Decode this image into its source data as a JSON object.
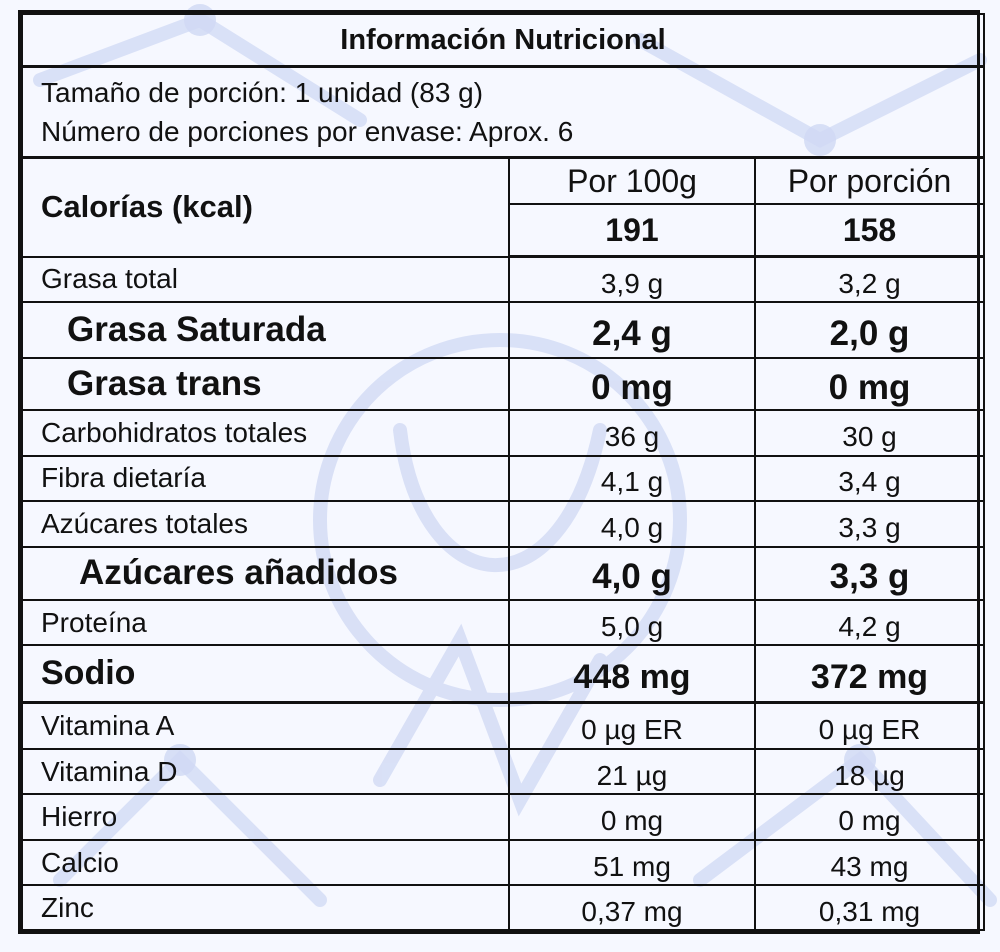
{
  "label": {
    "title": "Información Nutricional",
    "serving_size": "Tamaño de porción: 1 unidad (83 g)",
    "servings_per_container": "Número de porciones por envase: Aprox. 6",
    "calories_label": "Calorías (kcal)",
    "col_per100": "Por 100g",
    "col_perserving": "Por porción",
    "calories_per100": "191",
    "calories_perserving": "158",
    "rows": [
      {
        "name": "Grasa total",
        "per100": "3,9 g",
        "perserving": "3,2 g"
      },
      {
        "name": "Grasa Saturada",
        "per100": "2,4 g",
        "perserving": "2,0 g"
      },
      {
        "name": "Grasa trans",
        "per100": "0 mg",
        "perserving": "0 mg"
      },
      {
        "name": "Carbohidratos totales",
        "per100": "36 g",
        "perserving": "30 g"
      },
      {
        "name": "Fibra dietaría",
        "per100": "4,1 g",
        "perserving": "3,4 g"
      },
      {
        "name": "Azúcares totales",
        "per100": "4,0 g",
        "perserving": "3,3 g"
      },
      {
        "name": "Azúcares añadidos",
        "per100": "4,0 g",
        "perserving": "3,3 g"
      },
      {
        "name": "Proteína",
        "per100": "5,0 g",
        "perserving": "4,2 g"
      },
      {
        "name": "Sodio",
        "per100": "448 mg",
        "perserving": "372 mg"
      },
      {
        "name": "Vitamina A",
        "per100": "0 µg ER",
        "perserving": "0 µg ER"
      },
      {
        "name": "Vitamina D",
        "per100": "21 µg",
        "perserving": "18 µg"
      },
      {
        "name": "Hierro",
        "per100": "0 mg",
        "perserving": "0 mg"
      },
      {
        "name": "Calcio",
        "per100": "51 mg",
        "perserving": "43 mg"
      },
      {
        "name": "Zinc",
        "per100": "0,37 mg",
        "perserving": "0,31 mg"
      }
    ]
  },
  "colors": {
    "background": "#f6f8ff",
    "watermark": "#c9d3f2",
    "border": "#111111"
  }
}
